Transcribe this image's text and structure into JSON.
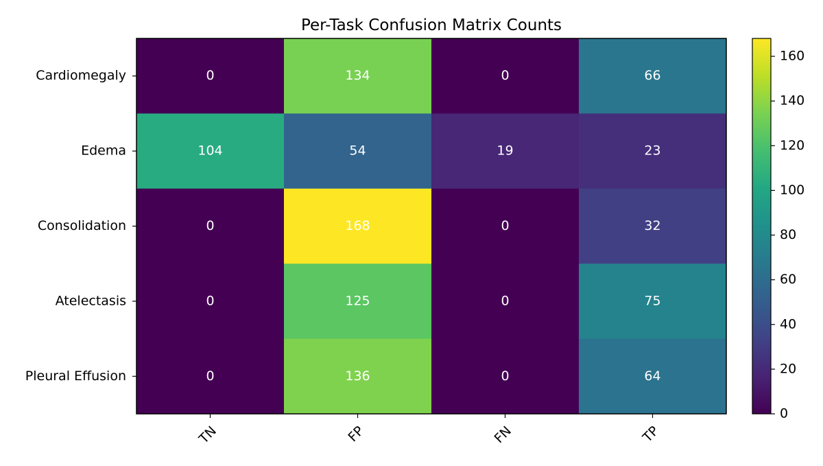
{
  "chart_data": {
    "type": "heatmap",
    "title": "Per-Task Confusion Matrix Counts",
    "x_categories": [
      "TN",
      "FP",
      "FN",
      "TP"
    ],
    "y_categories": [
      "Cardiomegaly",
      "Edema",
      "Consolidation",
      "Atelectasis",
      "Pleural Effusion"
    ],
    "values": [
      [
        0,
        134,
        0,
        66
      ],
      [
        104,
        54,
        19,
        23
      ],
      [
        0,
        168,
        0,
        32
      ],
      [
        0,
        125,
        0,
        75
      ],
      [
        0,
        136,
        0,
        64
      ]
    ],
    "colormap": "viridis",
    "vmin": 0,
    "vmax": 168,
    "colorbar_ticks": [
      0,
      20,
      40,
      60,
      80,
      100,
      120,
      140,
      160
    ],
    "cell_text_color": "#ffffff",
    "x_tick_rotation_deg": 45
  }
}
